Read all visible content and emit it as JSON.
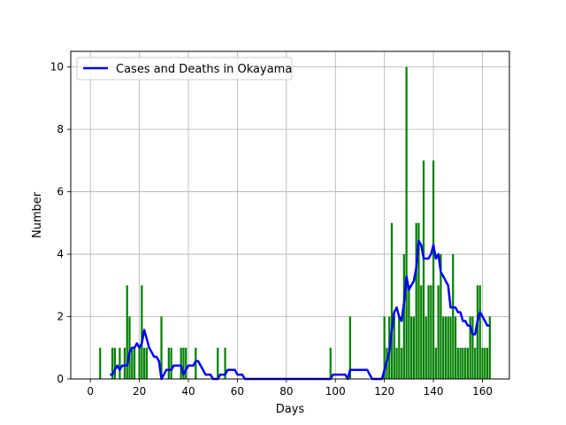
{
  "chart_data": {
    "type": "bar",
    "title": "",
    "xlabel": "Days",
    "ylabel": "Number",
    "xlim": [
      -8,
      171
    ],
    "ylim": [
      0,
      10.5
    ],
    "xticks": [
      0,
      20,
      40,
      60,
      80,
      100,
      120,
      140,
      160
    ],
    "yticks": [
      0,
      2,
      4,
      6,
      8,
      10
    ],
    "grid": true,
    "legend_position": "top-left",
    "colors": {
      "bars": "#008000",
      "line": "#0000ff",
      "grid": "#b0b0b0",
      "axes": "#000000"
    },
    "bars": {
      "x": [
        4,
        9,
        10,
        12,
        14,
        15,
        16,
        17,
        18,
        20,
        21,
        22,
        23,
        29,
        32,
        33,
        37,
        38,
        39,
        43,
        52,
        55,
        98,
        106,
        120,
        121,
        122,
        123,
        124,
        125,
        126,
        127,
        128,
        129,
        130,
        131,
        132,
        133,
        134,
        135,
        136,
        137,
        138,
        139,
        140,
        141,
        142,
        143,
        144,
        145,
        146,
        147,
        148,
        149,
        150,
        151,
        152,
        153,
        154,
        155,
        156,
        157,
        158,
        159,
        160,
        161,
        162,
        163
      ],
      "values": [
        1,
        1,
        1,
        1,
        1,
        3,
        2,
        1,
        1,
        1,
        3,
        1,
        1,
        2,
        1,
        1,
        1,
        1,
        1,
        1,
        1,
        1,
        1,
        2,
        2,
        1,
        2,
        5,
        2,
        1,
        2,
        1,
        4,
        10,
        3,
        2,
        2,
        5,
        5,
        3,
        7,
        2,
        3,
        3,
        7,
        1,
        3,
        4,
        2,
        2,
        2,
        2,
        4,
        2,
        1,
        1,
        1,
        1,
        1,
        2,
        2,
        1,
        3,
        3,
        1,
        1,
        1,
        2
      ]
    },
    "series": [
      {
        "name": "Cases and Deaths in Okayama",
        "x": [
          8,
          9,
          10,
          11,
          12,
          13,
          14,
          15,
          16,
          17,
          18,
          19,
          20,
          21,
          22,
          23,
          24,
          25,
          26,
          27,
          28,
          29,
          30,
          31,
          32,
          33,
          34,
          35,
          36,
          37,
          38,
          39,
          40,
          41,
          42,
          43,
          44,
          45,
          46,
          47,
          48,
          49,
          50,
          51,
          52,
          53,
          54,
          55,
          56,
          57,
          58,
          59,
          60,
          61,
          62,
          63,
          98,
          99,
          100,
          104,
          105,
          106,
          107,
          113,
          114,
          115,
          116,
          117,
          118,
          119,
          120,
          121,
          122,
          123,
          124,
          125,
          126,
          127,
          128,
          129,
          130,
          131,
          132,
          133,
          134,
          135,
          136,
          137,
          138,
          139,
          140,
          141,
          142,
          143,
          144,
          145,
          146,
          147,
          148,
          149,
          150,
          151,
          152,
          153,
          154,
          155,
          156,
          157,
          158,
          159,
          160,
          161,
          162,
          163
        ],
        "values": [
          0.14,
          0.14,
          0.29,
          0.43,
          0.29,
          0.43,
          0.43,
          0.43,
          0.86,
          1.0,
          1.0,
          1.14,
          1.0,
          1.14,
          1.57,
          1.29,
          1.0,
          0.86,
          0.71,
          0.71,
          0.57,
          0.0,
          0.14,
          0.29,
          0.29,
          0.29,
          0.43,
          0.43,
          0.43,
          0.43,
          0.14,
          0.29,
          0.43,
          0.43,
          0.43,
          0.57,
          0.57,
          0.43,
          0.29,
          0.14,
          0.14,
          0.14,
          0.0,
          0.0,
          0.0,
          0.14,
          0.14,
          0.14,
          0.29,
          0.29,
          0.29,
          0.29,
          0.14,
          0.14,
          0.14,
          0.0,
          0.0,
          0.14,
          0.14,
          0.14,
          0.0,
          0.29,
          0.29,
          0.29,
          0.14,
          0.0,
          0.0,
          0.0,
          0.0,
          0.0,
          0.29,
          0.57,
          0.86,
          1.57,
          2.14,
          2.29,
          2.0,
          1.86,
          2.43,
          3.29,
          2.86,
          3.0,
          3.14,
          3.57,
          4.43,
          4.29,
          3.86,
          3.86,
          3.86,
          4.0,
          4.29,
          3.86,
          4.0,
          3.43,
          3.29,
          3.14,
          3.0,
          2.29,
          2.29,
          2.29,
          2.14,
          2.14,
          1.86,
          1.86,
          1.71,
          1.71,
          1.43,
          1.43,
          1.86,
          2.14,
          2.0,
          1.86,
          1.71,
          1.71
        ]
      }
    ]
  }
}
